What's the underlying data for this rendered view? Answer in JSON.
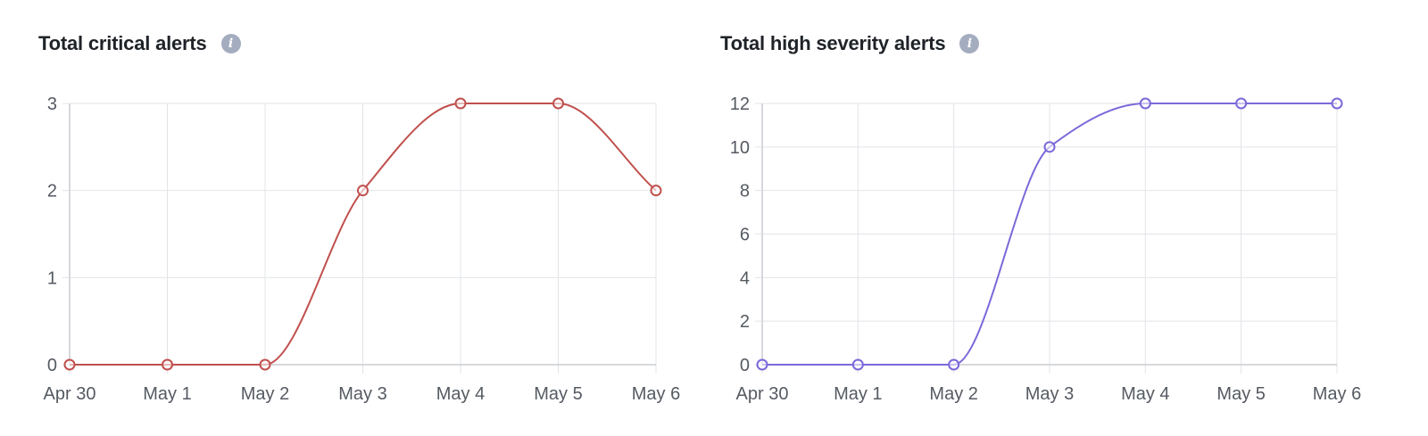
{
  "panels": [
    {
      "id": "critical",
      "title": "Total critical alerts",
      "info_icon": "info-icon"
    },
    {
      "id": "high",
      "title": "Total high severity alerts",
      "info_icon": "info-icon"
    }
  ],
  "chart_data": [
    {
      "type": "line",
      "title": "Total critical alerts",
      "xlabel": "",
      "ylabel": "",
      "categories": [
        "Apr 30",
        "May 1",
        "May 2",
        "May 3",
        "May 4",
        "May 5",
        "May 6"
      ],
      "series": [
        {
          "values": [
            0,
            0,
            0,
            2,
            3,
            3,
            2
          ],
          "color": "#c0504d"
        }
      ],
      "ylim": [
        0,
        3
      ],
      "yticks": [
        0,
        1,
        2,
        3
      ],
      "grid": true,
      "legend": "none"
    },
    {
      "type": "line",
      "title": "Total high severity alerts",
      "xlabel": "",
      "ylabel": "",
      "categories": [
        "Apr 30",
        "May 1",
        "May 2",
        "May 3",
        "May 4",
        "May 5",
        "May 6"
      ],
      "series": [
        {
          "values": [
            0,
            0,
            0,
            10,
            12,
            12,
            12
          ],
          "color": "#7b68d9"
        }
      ],
      "ylim": [
        0,
        12
      ],
      "yticks": [
        0,
        2,
        4,
        6,
        8,
        10,
        12
      ],
      "grid": true,
      "legend": "none"
    }
  ]
}
